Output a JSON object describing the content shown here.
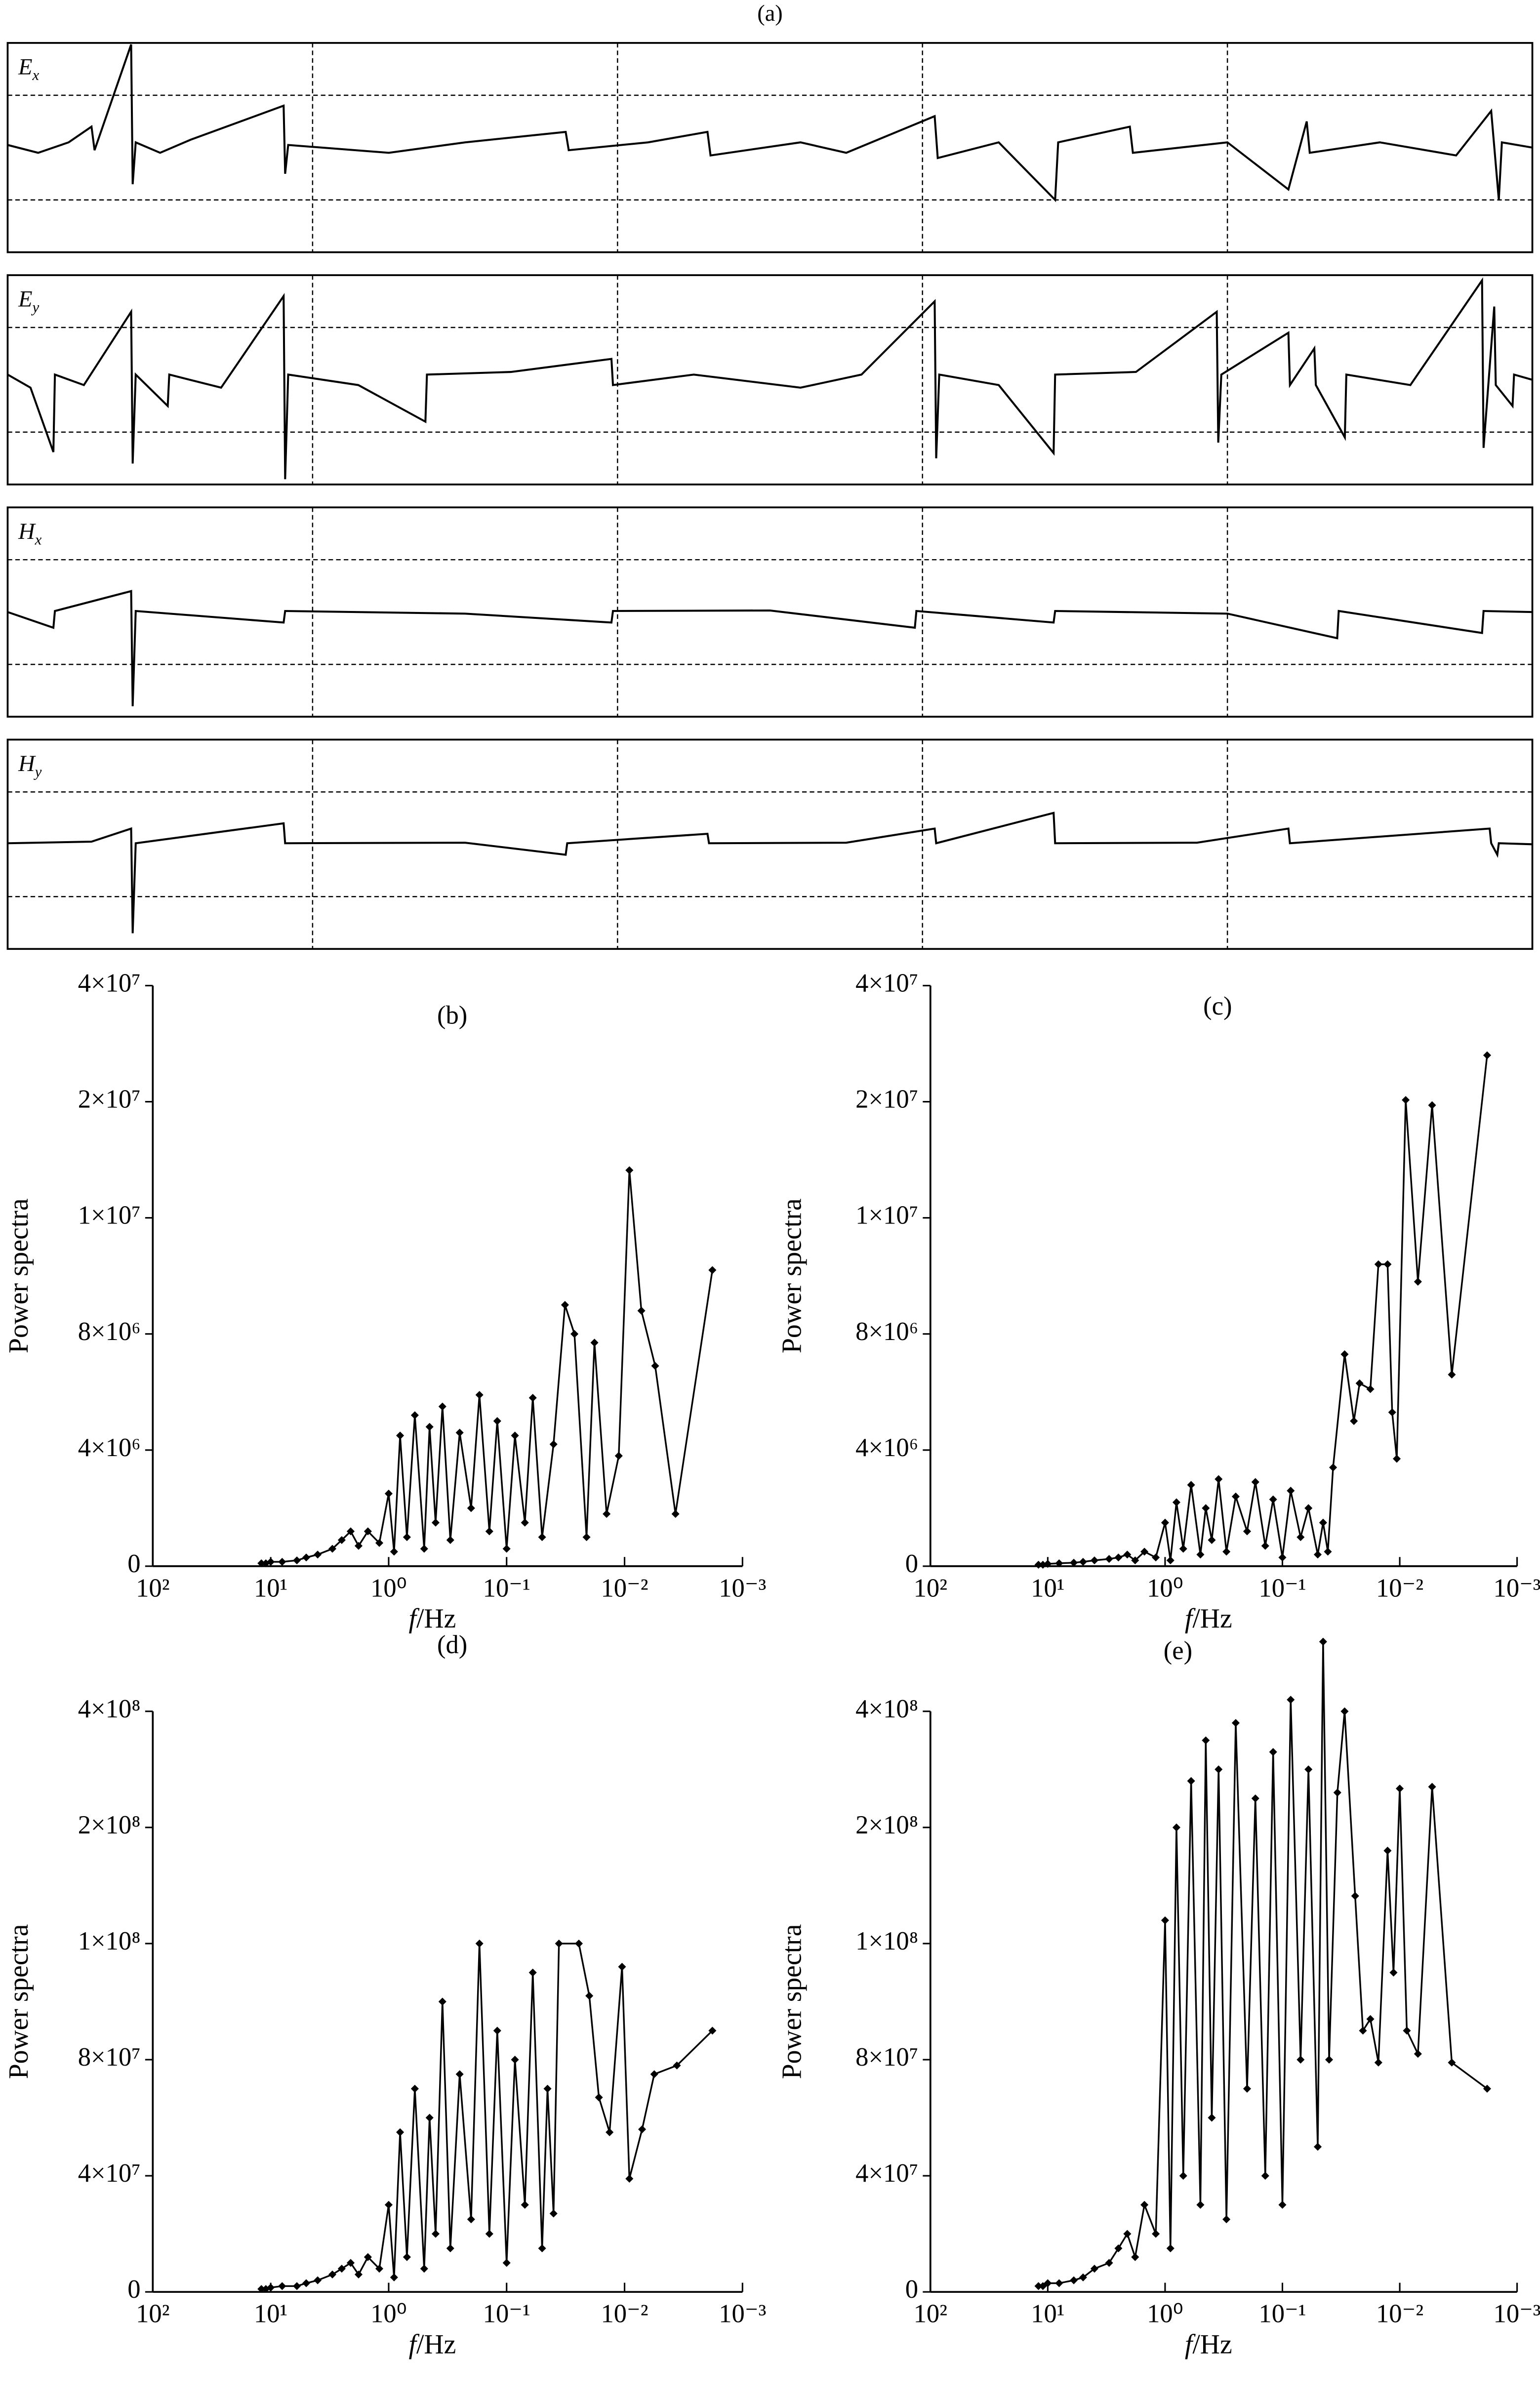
{
  "chart_data": [
    {
      "type": "timeseries",
      "title": "(a)",
      "xlim": [
        0,
        100
      ],
      "ylim": [
        -2,
        2
      ],
      "xticks": [
        20,
        40,
        60,
        80
      ],
      "yticks": [
        -1,
        1
      ],
      "color": "#000000",
      "traces": [
        {
          "symbol": "E",
          "subscript": "x",
          "x": [
            0,
            2,
            4,
            5.5,
            5.7,
            8.1,
            8.2,
            8.4,
            10,
            12,
            18.1,
            18.2,
            18.4,
            25,
            30,
            36.6,
            36.8,
            42,
            45.9,
            46.1,
            52,
            55,
            60.8,
            61,
            65,
            68.7,
            68.9,
            73.6,
            73.8,
            80,
            84,
            85.2,
            85.4,
            90,
            95,
            97.3,
            97.8,
            98,
            100
          ],
          "values": [
            0.05,
            -0.1,
            0.1,
            0.4,
            -0.05,
            1.97,
            -0.7,
            0.1,
            -0.1,
            0.15,
            0.8,
            -0.5,
            0.05,
            -0.1,
            0.1,
            0.3,
            -0.05,
            0.1,
            0.3,
            -0.15,
            0.1,
            -0.1,
            0.6,
            -0.2,
            0.1,
            -1.0,
            0.1,
            0.4,
            -0.1,
            0.1,
            -0.8,
            0.5,
            -0.1,
            0.1,
            -0.15,
            0.7,
            -1.0,
            0.1,
            0
          ]
        },
        {
          "symbol": "E",
          "subscript": "y",
          "x": [
            0,
            1.5,
            3.0,
            3.1,
            5,
            8.1,
            8.2,
            8.4,
            10.5,
            10.6,
            14,
            18.1,
            18.2,
            18.4,
            23,
            27.4,
            27.5,
            33,
            39.6,
            39.7,
            45,
            52,
            56,
            60.8,
            60.9,
            61.1,
            65,
            68.6,
            68.7,
            74,
            79.3,
            79.4,
            79.6,
            84.0,
            84.1,
            85.7,
            85.8,
            87.7,
            87.8,
            92,
            96.7,
            96.8,
            97.5,
            97.6,
            98.7,
            98.8,
            100
          ],
          "values": [
            0.1,
            -0.15,
            -1.38,
            0.1,
            -0.1,
            1.3,
            -1.6,
            0.1,
            -0.5,
            0.1,
            -0.15,
            1.6,
            -1.9,
            0.1,
            -0.1,
            -0.8,
            0.1,
            0.15,
            0.4,
            -0.1,
            0.1,
            -0.15,
            0.1,
            1.5,
            -1.5,
            0.1,
            -0.1,
            -1.4,
            0.1,
            0.15,
            1.3,
            -1.2,
            0.1,
            0.9,
            -0.1,
            0.6,
            -0.1,
            -1.1,
            0.1,
            -0.1,
            1.9,
            -1.3,
            1.4,
            -0.1,
            -0.5,
            0.1,
            0
          ]
        },
        {
          "symbol": "H",
          "subscript": "x",
          "x": [
            0,
            3.0,
            3.1,
            8.1,
            8.2,
            8.4,
            18.1,
            18.2,
            30,
            39.6,
            39.7,
            50,
            59.5,
            59.6,
            68.6,
            68.7,
            80,
            87.2,
            87.3,
            96.7,
            96.8,
            100
          ],
          "values": [
            0,
            -0.3,
            0.02,
            0.4,
            -1.8,
            0.02,
            -0.2,
            0.02,
            -0.03,
            -0.2,
            0.02,
            0.03,
            -0.3,
            0.02,
            -0.2,
            0.02,
            -0.03,
            -0.5,
            0.02,
            -0.4,
            0.02,
            0
          ]
        },
        {
          "symbol": "H",
          "subscript": "y",
          "x": [
            0,
            5.5,
            8.1,
            8.2,
            8.4,
            18.1,
            18.2,
            30,
            36.6,
            36.7,
            45.9,
            46.0,
            55,
            60.8,
            60.9,
            68.6,
            68.7,
            78,
            84.0,
            84.1,
            97.2,
            97.3,
            97.7,
            97.8,
            100
          ],
          "values": [
            0.02,
            0.05,
            0.3,
            -1.7,
            0.02,
            0.4,
            0.02,
            0.03,
            -0.2,
            0.02,
            0.2,
            0.02,
            0.03,
            0.3,
            0.02,
            0.6,
            0.02,
            0.03,
            0.3,
            0.02,
            0.3,
            0.02,
            -0.2,
            0.02,
            0
          ]
        }
      ]
    },
    {
      "type": "line",
      "title": "(b)",
      "ylabel": "Power spectra",
      "xlabel_symbol": "f",
      "xlabel_unit": "/Hz",
      "log_x": true,
      "color": "#000000",
      "xlim": [
        100,
        0.001
      ],
      "xticks": [
        {
          "value": 100,
          "label": "10²"
        },
        {
          "value": 10,
          "label": "10¹"
        },
        {
          "value": 1,
          "label": "10⁰"
        },
        {
          "value": 0.1,
          "label": "10⁻¹"
        },
        {
          "value": 0.01,
          "label": "10⁻²"
        },
        {
          "value": 0.001,
          "label": "10⁻³"
        }
      ],
      "ylim": [
        0,
        40000000
      ],
      "yticks": [
        0,
        {
          "value": 4000000,
          "label": "4×10⁶"
        },
        {
          "value": 8000000,
          "label": "8×10⁶"
        },
        {
          "value": 10000000,
          "label": "1×10⁷"
        },
        {
          "value": 20000000,
          "label": "2×10⁷"
        },
        {
          "value": 40000000,
          "label": "4×10⁷"
        }
      ],
      "x": [
        12,
        11,
        10,
        8,
        6,
        5,
        4,
        3,
        2.5,
        2.1,
        1.8,
        1.5,
        1.2,
        1.0,
        0.9,
        0.8,
        0.7,
        0.6,
        0.5,
        0.45,
        0.4,
        0.35,
        0.3,
        0.25,
        0.2,
        0.17,
        0.14,
        0.12,
        0.1,
        0.085,
        0.07,
        0.06,
        0.05,
        0.04,
        0.032,
        0.0266,
        0.021,
        0.018,
        0.0142,
        0.0112,
        0.0091,
        0.0072,
        0.0055,
        0.0037,
        0.0018
      ],
      "values": [
        100000,
        100000,
        150000,
        150000,
        200000,
        300000,
        400000,
        600000,
        900000,
        1200000,
        700000,
        1200000,
        800000,
        2500000,
        500000,
        4500000,
        1000000,
        5200000,
        600000,
        4800000,
        1500000,
        5500000,
        900000,
        4600000,
        2000000,
        5900000,
        1200000,
        5000000,
        600000,
        4500000,
        1500000,
        5800000,
        1000000,
        4200000,
        8500000,
        8000000,
        1000000,
        7700000,
        1800000,
        3800000,
        14100000,
        8400000,
        6900000,
        1800000,
        9100000
      ]
    },
    {
      "type": "line",
      "title": "(c)",
      "ylabel": "Power spectra",
      "xlabel_symbol": "f",
      "xlabel_unit": "/Hz",
      "log_x": true,
      "color": "#000000",
      "xlim": [
        100,
        0.001
      ],
      "xticks": [
        {
          "value": 100,
          "label": "10²"
        },
        {
          "value": 10,
          "label": "10¹"
        },
        {
          "value": 1,
          "label": "10⁰"
        },
        {
          "value": 0.1,
          "label": "10⁻¹"
        },
        {
          "value": 0.01,
          "label": "10⁻²"
        },
        {
          "value": 0.001,
          "label": "10⁻³"
        }
      ],
      "ylim": [
        0,
        40000000
      ],
      "yticks": [
        0,
        {
          "value": 4000000,
          "label": "4×10⁶"
        },
        {
          "value": 8000000,
          "label": "8×10⁶"
        },
        {
          "value": 10000000,
          "label": "1×10⁷"
        },
        {
          "value": 20000000,
          "label": "2×10⁷"
        },
        {
          "value": 40000000,
          "label": "4×10⁷"
        }
      ],
      "x": [
        12,
        11,
        10,
        8,
        6,
        5,
        4,
        3,
        2.5,
        2.1,
        1.8,
        1.5,
        1.2,
        1.0,
        0.9,
        0.8,
        0.7,
        0.6,
        0.5,
        0.45,
        0.4,
        0.35,
        0.3,
        0.25,
        0.2,
        0.17,
        0.14,
        0.12,
        0.1,
        0.085,
        0.07,
        0.06,
        0.05,
        0.045,
        0.041,
        0.037,
        0.0295,
        0.0246,
        0.022,
        0.0178,
        0.0152,
        0.0127,
        0.0116,
        0.0106,
        0.0089,
        0.007,
        0.0053,
        0.0036,
        0.0018
      ],
      "values": [
        50000,
        50000,
        80000,
        100000,
        120000,
        150000,
        200000,
        250000,
        300000,
        400000,
        200000,
        500000,
        300000,
        1500000,
        200000,
        2200000,
        600000,
        2800000,
        400000,
        2000000,
        900000,
        3000000,
        500000,
        2400000,
        1200000,
        2900000,
        700000,
        2300000,
        300000,
        2600000,
        1000000,
        2000000,
        400000,
        1500000,
        500000,
        3400000,
        7300000,
        5000000,
        6300000,
        6100000,
        9200000,
        9200000,
        5300000,
        3700000,
        20300000,
        8900000,
        19700000,
        6600000,
        28000000
      ]
    },
    {
      "type": "line",
      "title": "(d)",
      "ylabel": "Power spectra",
      "xlabel_symbol": "f",
      "xlabel_unit": "/Hz",
      "log_x": true,
      "color": "#000000",
      "xlim": [
        100,
        0.001
      ],
      "xticks": [
        {
          "value": 100,
          "label": "10²"
        },
        {
          "value": 10,
          "label": "10¹"
        },
        {
          "value": 1,
          "label": "10⁰"
        },
        {
          "value": 0.1,
          "label": "10⁻¹"
        },
        {
          "value": 0.01,
          "label": "10⁻²"
        },
        {
          "value": 0.001,
          "label": "10⁻³"
        }
      ],
      "ylim": [
        0,
        400000000
      ],
      "yticks": [
        0,
        {
          "value": 40000000,
          "label": "4×10⁷"
        },
        {
          "value": 80000000,
          "label": "8×10⁷"
        },
        {
          "value": 100000000,
          "label": "1×10⁸"
        },
        {
          "value": 200000000,
          "label": "2×10⁸"
        },
        {
          "value": 400000000,
          "label": "4×10⁸"
        }
      ],
      "x": [
        12,
        11,
        10,
        8,
        6,
        5,
        4,
        3,
        2.5,
        2.1,
        1.8,
        1.5,
        1.2,
        1.0,
        0.9,
        0.8,
        0.7,
        0.6,
        0.5,
        0.45,
        0.4,
        0.35,
        0.3,
        0.25,
        0.2,
        0.17,
        0.14,
        0.12,
        0.1,
        0.085,
        0.07,
        0.06,
        0.05,
        0.045,
        0.04,
        0.036,
        0.0244,
        0.0199,
        0.0165,
        0.0134,
        0.0105,
        0.0091,
        0.0071,
        0.0056,
        0.0036,
        0.0018
      ],
      "values": [
        1000000,
        1000000,
        1500000,
        2000000,
        2000000,
        3000000,
        4000000,
        6000000,
        8000000,
        10000000,
        6000000,
        12000000,
        8000000,
        30000000,
        5000000,
        55000000,
        12000000,
        70000000,
        8000000,
        60000000,
        20000000,
        90000000,
        15000000,
        75000000,
        25000000,
        100000000,
        20000000,
        85000000,
        10000000,
        80000000,
        30000000,
        95000000,
        15000000,
        70000000,
        27000000,
        100000000,
        100000000,
        91000000,
        67000000,
        55000000,
        96000000,
        39000000,
        56000000,
        75000000,
        78000000,
        85000000
      ]
    },
    {
      "type": "line",
      "title": "(e)",
      "ylabel": "Power spectra",
      "xlabel_symbol": "f",
      "xlabel_unit": "/Hz",
      "log_x": true,
      "color": "#000000",
      "xlim": [
        100,
        0.001
      ],
      "xticks": [
        {
          "value": 100,
          "label": "10²"
        },
        {
          "value": 10,
          "label": "10¹"
        },
        {
          "value": 1,
          "label": "10⁰"
        },
        {
          "value": 0.1,
          "label": "10⁻¹"
        },
        {
          "value": 0.01,
          "label": "10⁻²"
        },
        {
          "value": 0.001,
          "label": "10⁻³"
        }
      ],
      "ylim": [
        0,
        400000000
      ],
      "yticks": [
        0,
        {
          "value": 40000000,
          "label": "4×10⁷"
        },
        {
          "value": 80000000,
          "label": "8×10⁷"
        },
        {
          "value": 100000000,
          "label": "1×10⁸"
        },
        {
          "value": 200000000,
          "label": "2×10⁸"
        },
        {
          "value": 400000000,
          "label": "4×10⁸"
        }
      ],
      "x": [
        12,
        11,
        10,
        8,
        6,
        5,
        4,
        3,
        2.5,
        2.1,
        1.8,
        1.5,
        1.2,
        1.0,
        0.9,
        0.8,
        0.7,
        0.6,
        0.5,
        0.45,
        0.4,
        0.35,
        0.3,
        0.25,
        0.2,
        0.17,
        0.14,
        0.12,
        0.1,
        0.085,
        0.07,
        0.06,
        0.05,
        0.045,
        0.04,
        0.034,
        0.0295,
        0.024,
        0.0206,
        0.0178,
        0.0152,
        0.0127,
        0.0113,
        0.01,
        0.0087,
        0.007,
        0.0053,
        0.0036,
        0.0018
      ],
      "values": [
        2000000,
        2000000,
        3000000,
        3000000,
        4000000,
        5000000,
        8000000,
        10000000,
        15000000,
        20000000,
        12000000,
        30000000,
        20000000,
        120000000,
        15000000,
        200000000,
        40000000,
        280000000,
        30000000,
        350000000,
        60000000,
        300000000,
        25000000,
        380000000,
        70000000,
        250000000,
        40000000,
        330000000,
        30000000,
        420000000,
        80000000,
        300000000,
        50000000,
        520000000,
        80000000,
        260000000,
        400000000,
        141000000,
        85000000,
        87000000,
        79000000,
        180000000,
        95000000,
        267000000,
        85000000,
        81000000,
        270000000,
        79000000,
        70000000
      ]
    }
  ]
}
